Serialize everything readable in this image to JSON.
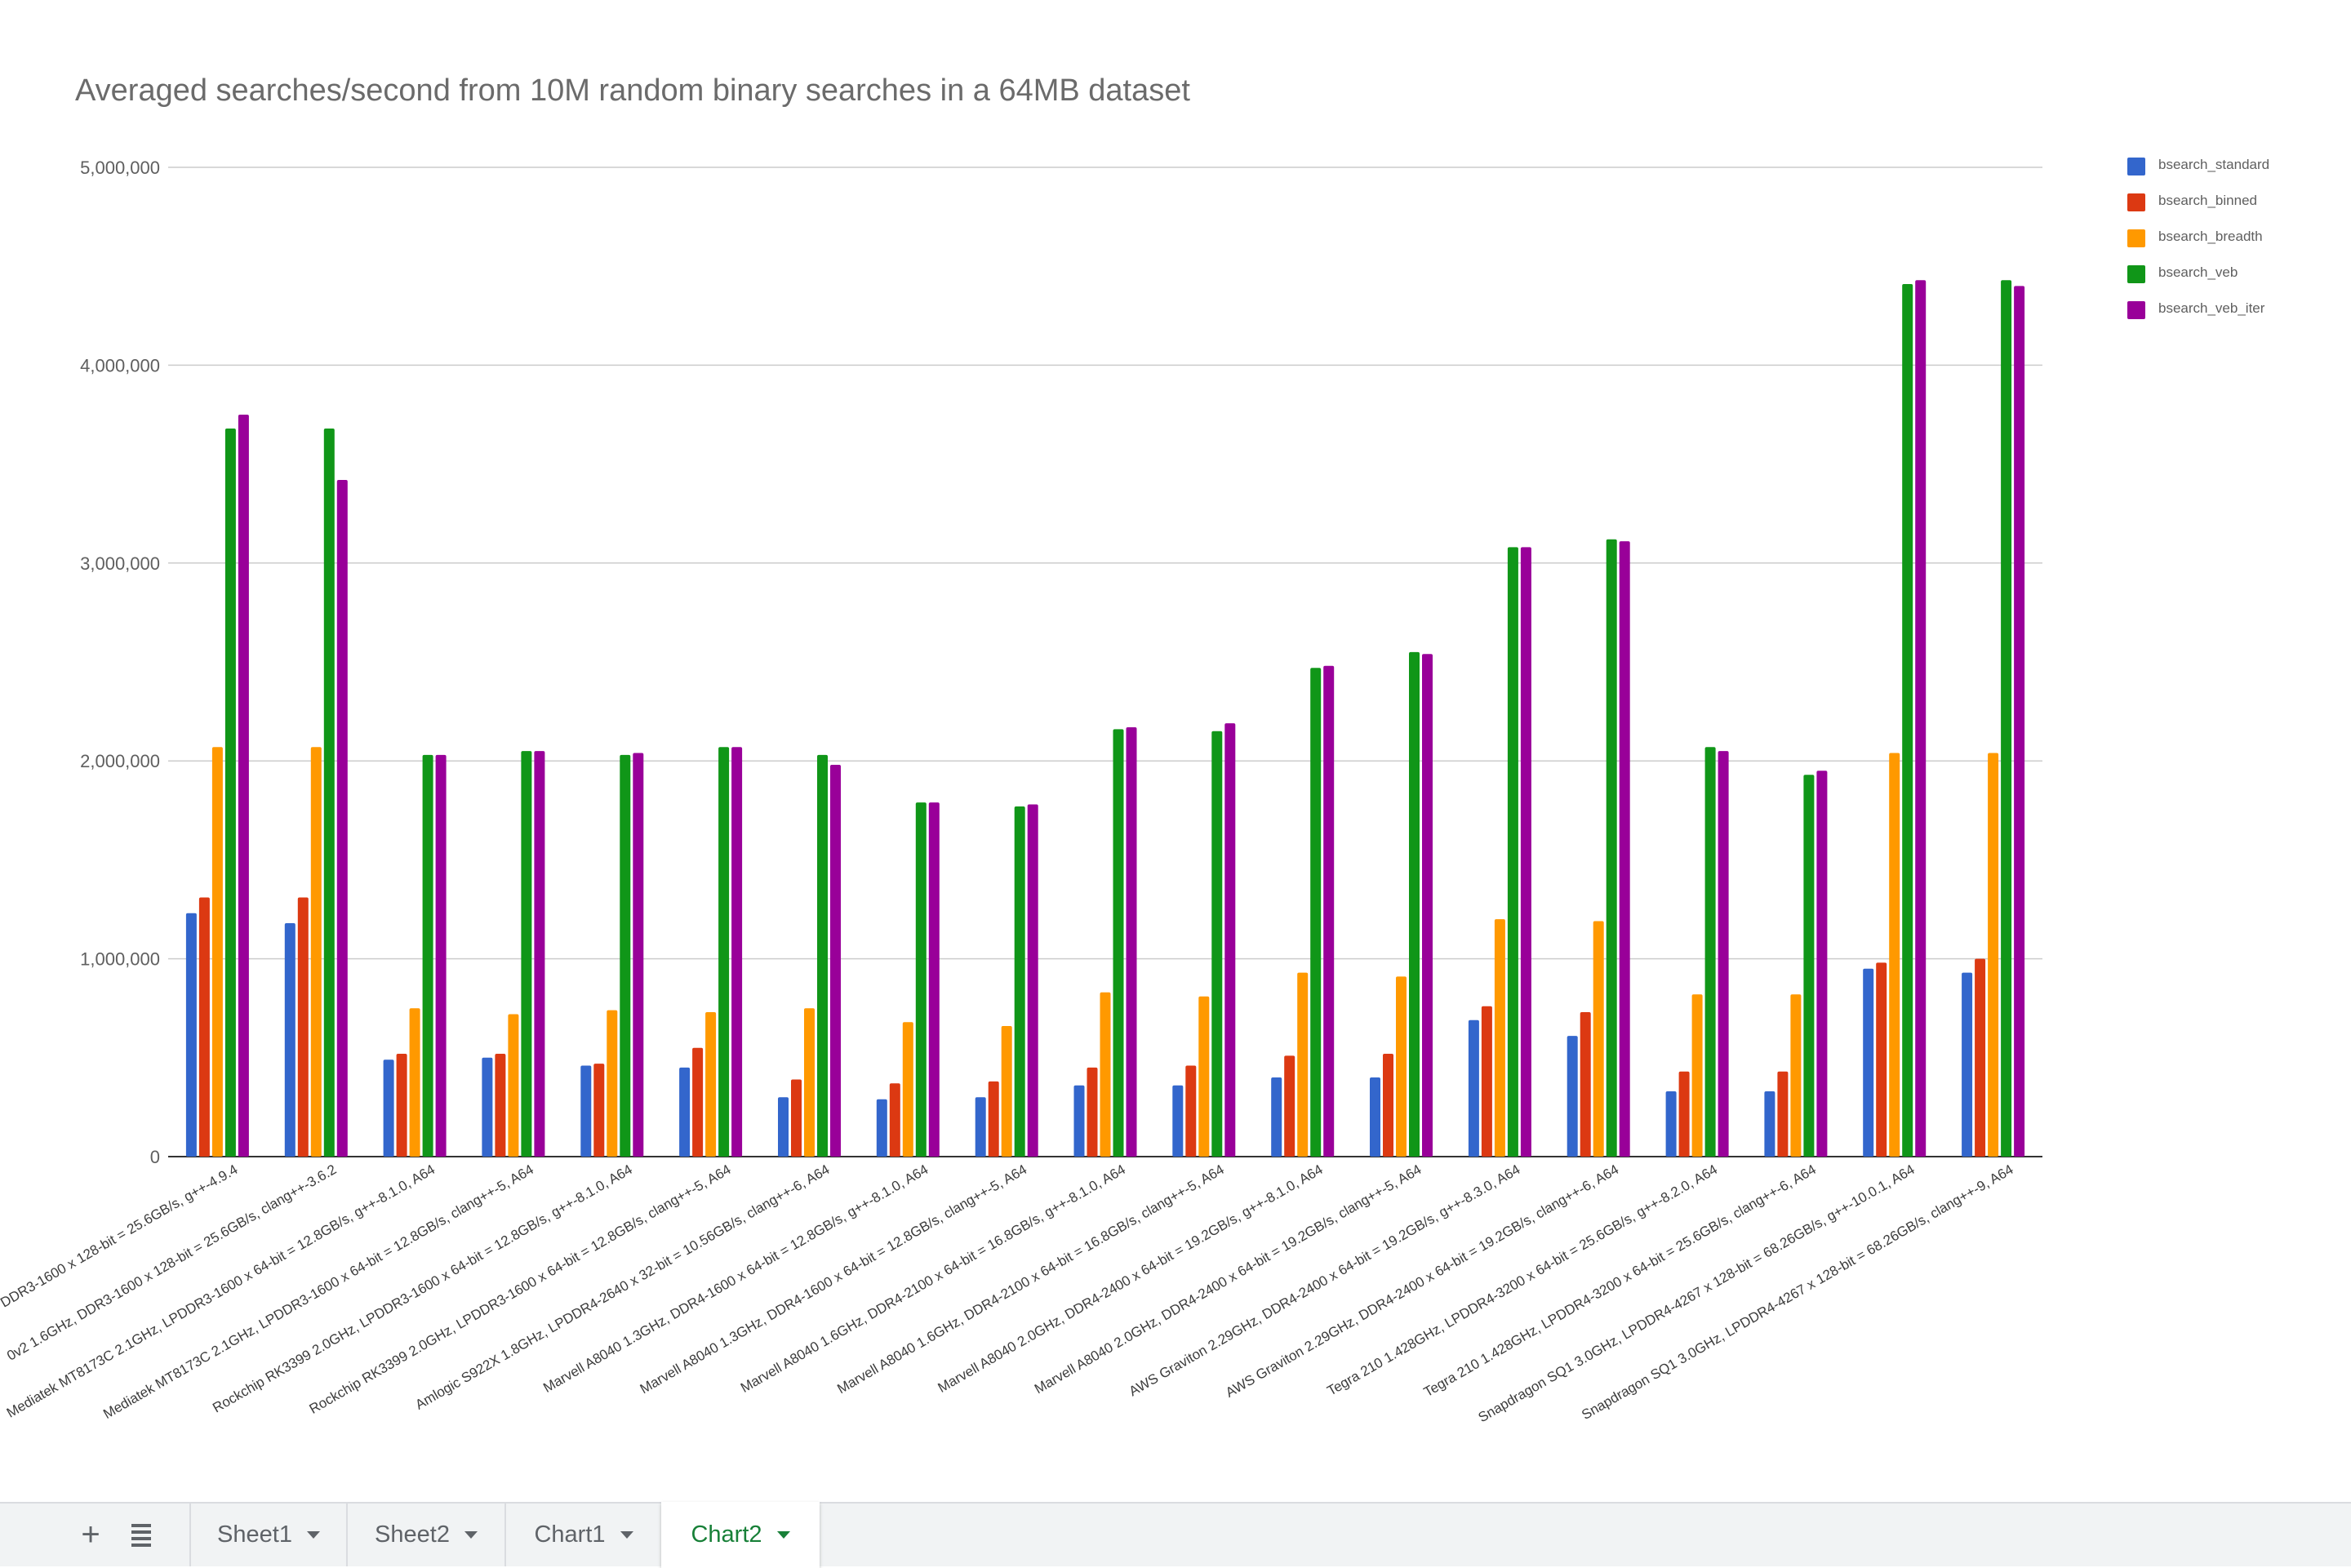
{
  "chart_data": {
    "type": "bar",
    "title": "Averaged searches/second from 10M random binary searches in a 64MB dataset",
    "xlabel": "",
    "ylabel": "",
    "ylim": [
      0,
      5000000
    ],
    "yticks": [
      0,
      1000000,
      2000000,
      3000000,
      4000000,
      5000000
    ],
    "ytick_labels": [
      "0",
      "1,000,000",
      "2,000,000",
      "3,000,000",
      "4,000,000",
      "5,000,000"
    ],
    "grid": true,
    "legend_position": "right",
    "categories": [
      "DDR3-1600 x 128-bit = 25.6GB/s, g++-4.9.4",
      "0v2 1.6GHz, DDR3-1600 x 128-bit = 25.6GB/s, clang++-3.6.2",
      "Mediatek MT8173C 2.1GHz, LPDDR3-1600 x 64-bit = 12.8GB/s, g++-8.1.0, A64",
      "Mediatek MT8173C 2.1GHz, LPDDR3-1600 x 64-bit = 12.8GB/s, clang++-5, A64",
      "Rockchip RK3399 2.0GHz, LPDDR3-1600 x 64-bit = 12.8GB/s, g++-8.1.0, A64",
      "Rockchip RK3399 2.0GHz, LPDDR3-1600 x 64-bit = 12.8GB/s, clang++-5, A64",
      "Amlogic S922X 1.8GHz, LPDDR4-2640 x 32-bit = 10.56GB/s, clang++-6, A64",
      "Marvell A8040 1.3GHz, DDR4-1600 x 64-bit = 12.8GB/s, g++-8.1.0, A64",
      "Marvell A8040 1.3GHz, DDR4-1600 x 64-bit = 12.8GB/s, clang++-5, A64",
      "Marvell A8040 1.6GHz, DDR4-2100 x 64-bit = 16.8GB/s, g++-8.1.0, A64",
      "Marvell A8040 1.6GHz, DDR4-2100 x 64-bit = 16.8GB/s, clang++-5, A64",
      "Marvell A8040 2.0GHz, DDR4-2400 x 64-bit = 19.2GB/s, g++-8.1.0, A64",
      "Marvell A8040 2.0GHz, DDR4-2400 x 64-bit = 19.2GB/s, clang++-5, A64",
      "AWS Graviton 2.29GHz, DDR4-2400 x 64-bit = 19.2GB/s, g++-8.3.0, A64",
      "AWS Graviton 2.29GHz, DDR4-2400 x 64-bit = 19.2GB/s, clang++-6, A64",
      "Tegra 210 1.428GHz, LPDDR4-3200 x 64-bit = 25.6GB/s, g++-8.2.0, A64",
      "Tegra 210 1.428GHz, LPDDR4-3200 x 64-bit = 25.6GB/s, clang++-6, A64",
      "Snapdragon SQ1 3.0GHz, LPDDR4-4267 x 128-bit = 68.26GB/s, g++-10.0.1, A64",
      "Snapdragon SQ1 3.0GHz, LPDDR4-4267 x 128-bit = 68.26GB/s, clang++-9, A64"
    ],
    "series": [
      {
        "name": "bsearch_standard",
        "color": "#3366cc",
        "values": [
          1230000,
          1180000,
          490000,
          500000,
          460000,
          450000,
          300000,
          290000,
          300000,
          360000,
          360000,
          400000,
          400000,
          690000,
          610000,
          330000,
          330000,
          950000,
          930000
        ]
      },
      {
        "name": "bsearch_binned",
        "color": "#dc3912",
        "values": [
          1310000,
          1310000,
          520000,
          520000,
          470000,
          550000,
          390000,
          370000,
          380000,
          450000,
          460000,
          510000,
          520000,
          760000,
          730000,
          430000,
          430000,
          980000,
          1000000
        ]
      },
      {
        "name": "bsearch_breadth",
        "color": "#ff9900",
        "values": [
          2070000,
          2070000,
          750000,
          720000,
          740000,
          730000,
          750000,
          680000,
          660000,
          830000,
          810000,
          930000,
          910000,
          1200000,
          1190000,
          820000,
          820000,
          2040000,
          2040000
        ]
      },
      {
        "name": "bsearch_veb",
        "color": "#109618",
        "values": [
          3680000,
          3680000,
          2030000,
          2050000,
          2030000,
          2070000,
          2030000,
          1790000,
          1770000,
          2160000,
          2150000,
          2470000,
          2550000,
          3080000,
          3120000,
          2070000,
          1930000,
          4410000,
          4430000
        ]
      },
      {
        "name": "bsearch_veb_iter",
        "color": "#990099",
        "values": [
          3750000,
          3420000,
          2030000,
          2050000,
          2040000,
          2070000,
          1980000,
          1790000,
          1780000,
          2170000,
          2190000,
          2480000,
          2540000,
          3080000,
          3110000,
          2050000,
          1950000,
          4430000,
          4400000
        ]
      }
    ]
  },
  "sheet_bar": {
    "tabs": [
      {
        "label": "Sheet1",
        "active": false
      },
      {
        "label": "Sheet2",
        "active": false
      },
      {
        "label": "Chart1",
        "active": false
      },
      {
        "label": "Chart2",
        "active": true
      }
    ],
    "add_icon": "plus-icon",
    "list_icon": "all-sheets-icon",
    "add_symbol": "+"
  }
}
